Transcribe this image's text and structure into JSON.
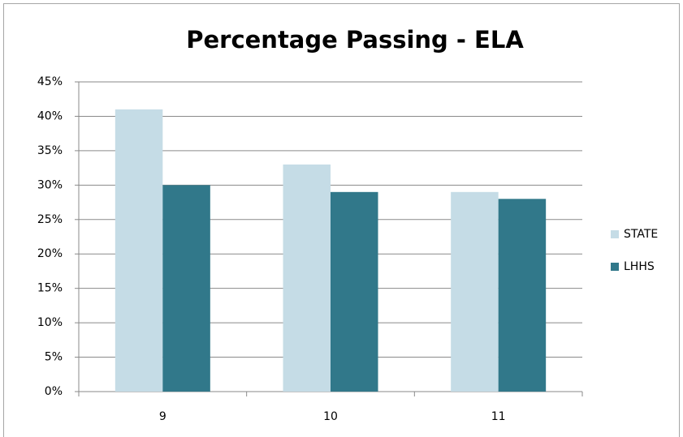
{
  "chart_data": {
    "type": "bar",
    "title": "Percentage Passing - ELA",
    "categories": [
      "9",
      "10",
      "11"
    ],
    "series": [
      {
        "name": "STATE",
        "color": "#c5dce6",
        "values": [
          41,
          33,
          29
        ]
      },
      {
        "name": "LHHS",
        "color": "#31788a",
        "values": [
          30,
          29,
          28
        ]
      }
    ],
    "ylim": [
      0,
      45
    ],
    "yticks": [
      {
        "value": 0,
        "label": "0%"
      },
      {
        "value": 5,
        "label": "5%"
      },
      {
        "value": 10,
        "label": "10%"
      },
      {
        "value": 15,
        "label": "15%"
      },
      {
        "value": 20,
        "label": "20%"
      },
      {
        "value": 25,
        "label": "25%"
      },
      {
        "value": 30,
        "label": "30%"
      },
      {
        "value": 35,
        "label": "35%"
      },
      {
        "value": 40,
        "label": "40%"
      },
      {
        "value": 45,
        "label": "45%"
      }
    ],
    "grid": true,
    "legend": "right"
  }
}
